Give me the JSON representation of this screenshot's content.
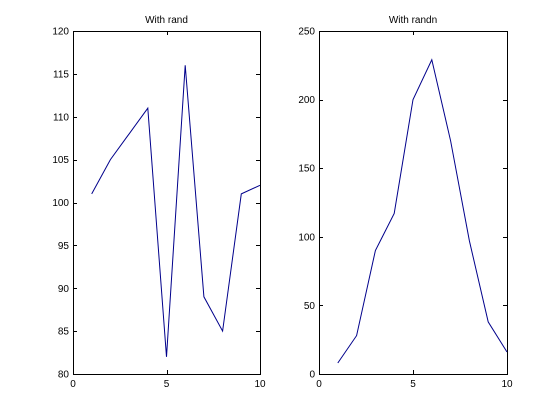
{
  "figure": {
    "background": "#ffffff"
  },
  "chart_data": [
    {
      "type": "line",
      "title": "With rand",
      "xlabel": "",
      "ylabel": "",
      "xlim": [
        0,
        10
      ],
      "ylim": [
        80,
        120
      ],
      "grid": false,
      "xticks": [
        0,
        5,
        10
      ],
      "yticks": [
        80,
        85,
        90,
        95,
        100,
        105,
        110,
        115,
        120
      ],
      "series": [
        {
          "color": "#00008b",
          "x": [
            1,
            2,
            3,
            4,
            5,
            6,
            7,
            8,
            9,
            10
          ],
          "y": [
            101,
            105,
            108,
            111,
            82,
            116,
            89,
            85,
            101,
            102
          ]
        }
      ]
    },
    {
      "type": "line",
      "title": "With randn",
      "xlabel": "",
      "ylabel": "",
      "xlim": [
        0,
        10
      ],
      "ylim": [
        0,
        250
      ],
      "grid": false,
      "xticks": [
        0,
        5,
        10
      ],
      "yticks": [
        0,
        50,
        100,
        150,
        200,
        250
      ],
      "series": [
        {
          "color": "#00008b",
          "x": [
            1,
            2,
            3,
            4,
            5,
            6,
            7,
            8,
            9,
            10
          ],
          "y": [
            8,
            28,
            90,
            117,
            200,
            229,
            170,
            97,
            38,
            16
          ]
        }
      ]
    }
  ]
}
